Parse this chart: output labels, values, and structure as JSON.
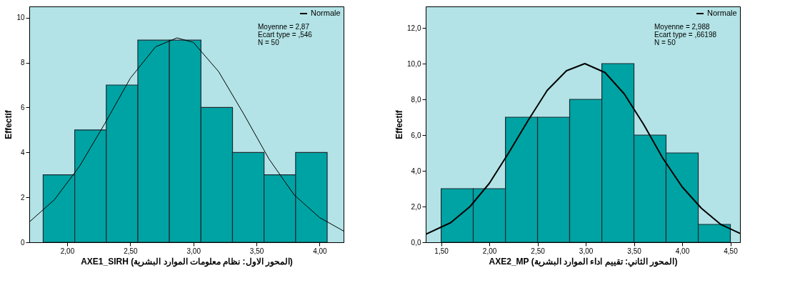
{
  "chart_data": [
    {
      "type": "histogram",
      "xlabel": "AXE1_SIRH  (المحور الاول: نظام معلومات  الموارد البشرية)",
      "ylabel": "Effectif",
      "bins": [
        1.81,
        2.06,
        2.31,
        2.56,
        2.81,
        3.06,
        3.31,
        3.56,
        3.81,
        4.06
      ],
      "values": [
        3,
        5,
        7,
        9,
        9,
        6,
        4,
        3,
        4
      ],
      "color": "#00a3a3",
      "xlim": [
        1.7,
        4.19
      ],
      "ylim": [
        0,
        10.5
      ],
      "xticks": [
        {
          "value": 2,
          "label": "2,00"
        },
        {
          "value": 2.5,
          "label": "2,50"
        },
        {
          "value": 3,
          "label": "3,00"
        },
        {
          "value": 3.5,
          "label": "3,50"
        },
        {
          "value": 4,
          "label": "4,00"
        }
      ],
      "yticks": [
        0,
        2,
        4,
        6,
        8,
        10
      ],
      "grid": false,
      "legend": "top right",
      "annotations": [
        "Moyenne = 2,87",
        "Ecart type = ,546",
        "N = 50"
      ],
      "series": [
        {
          "type": "line",
          "name": "Normale",
          "color": "#000000",
          "x": [
            1.7,
            1.9,
            2.1,
            2.3,
            2.5,
            2.7,
            2.87,
            3.0,
            3.2,
            3.4,
            3.6,
            3.8,
            4.0,
            4.19
          ],
          "values": [
            0.9,
            1.9,
            3.4,
            5.3,
            7.3,
            8.7,
            9.1,
            8.9,
            7.6,
            5.7,
            3.7,
            2.1,
            1.1,
            0.5
          ]
        }
      ]
    },
    {
      "type": "histogram",
      "xlabel": "AXE2_MP  (المحور الثاني: تقييم اداء الموارد البشرية)",
      "ylabel": "Effectif",
      "bins": [
        1.5,
        1.833,
        2.167,
        2.5,
        2.833,
        3.167,
        3.5,
        3.833,
        4.167,
        4.5
      ],
      "values": [
        3,
        3,
        7,
        7,
        8,
        10,
        6,
        5,
        1
      ],
      "color": "#00a3a3",
      "xlim": [
        1.34,
        4.6
      ],
      "ylim": [
        0,
        13.2
      ],
      "xticks": [
        {
          "value": 1.5,
          "label": "1,50"
        },
        {
          "value": 2,
          "label": "2,00"
        },
        {
          "value": 2.5,
          "label": "2,50"
        },
        {
          "value": 3,
          "label": "3,00"
        },
        {
          "value": 3.5,
          "label": "3,50"
        },
        {
          "value": 4,
          "label": "4,00"
        },
        {
          "value": 4.5,
          "label": "4,50"
        }
      ],
      "yticks": [
        {
          "value": 0,
          "label": "0,0"
        },
        {
          "value": 2,
          "label": "2,0"
        },
        {
          "value": 4,
          "label": "4,0"
        },
        {
          "value": 6,
          "label": "6,0"
        },
        {
          "value": 8,
          "label": "8,0"
        },
        {
          "value": 10,
          "label": "10,0"
        },
        {
          "value": 12,
          "label": "12,0"
        }
      ],
      "grid": false,
      "legend": "top right",
      "annotations": [
        "Moyenne = 2,988",
        "Ecart type = ,66198",
        "N = 50"
      ],
      "series": [
        {
          "type": "line",
          "name": "Normale",
          "color": "#000000",
          "x": [
            1.34,
            1.6,
            1.8,
            2.0,
            2.2,
            2.4,
            2.6,
            2.8,
            2.99,
            3.2,
            3.4,
            3.6,
            3.8,
            4.0,
            4.2,
            4.4,
            4.6
          ],
          "values": [
            0.45,
            1.1,
            2.0,
            3.3,
            5.0,
            6.8,
            8.5,
            9.6,
            10.0,
            9.5,
            8.3,
            6.6,
            4.7,
            3.1,
            1.9,
            1.0,
            0.5
          ]
        }
      ]
    }
  ]
}
